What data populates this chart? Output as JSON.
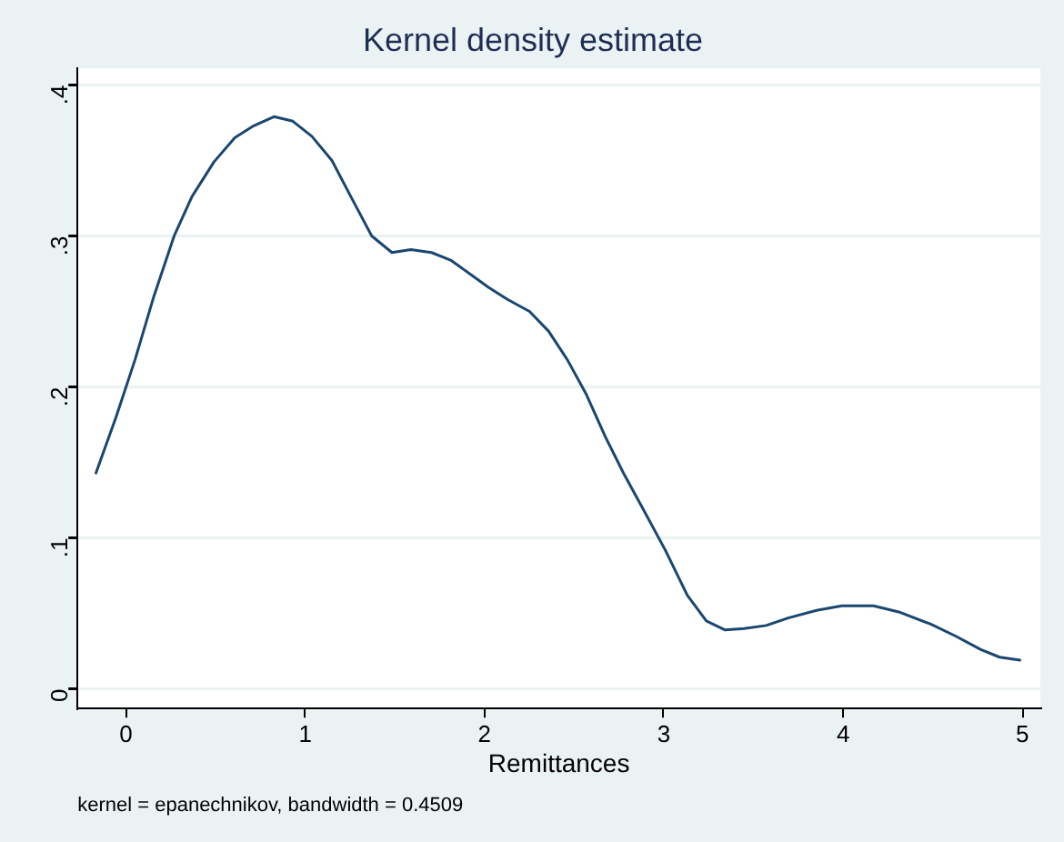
{
  "chart_data": {
    "type": "line",
    "title": "Kernel density estimate",
    "xlabel": "Remittances",
    "annotations": [
      "kernel = epanechnikov, bandwidth = 0.4509"
    ],
    "x": [
      -0.167,
      -0.055,
      0.051,
      0.156,
      0.269,
      0.368,
      0.491,
      0.607,
      0.713,
      0.826,
      0.931,
      1.037,
      1.149,
      1.255,
      1.371,
      1.484,
      1.589,
      1.705,
      1.811,
      1.917,
      2.022,
      2.128,
      2.251,
      2.357,
      2.462,
      2.568,
      2.674,
      2.779,
      2.885,
      3.008,
      3.131,
      3.237,
      3.342,
      3.448,
      3.571,
      3.694,
      3.852,
      3.993,
      4.169,
      4.31,
      4.486,
      4.627,
      4.768,
      4.873,
      4.986
    ],
    "series": [
      {
        "color": "#1a476f",
        "values": [
          0.143,
          0.18,
          0.218,
          0.26,
          0.3,
          0.326,
          0.349,
          0.365,
          0.373,
          0.379,
          0.376,
          0.366,
          0.35,
          0.326,
          0.3,
          0.289,
          0.291,
          0.289,
          0.284,
          0.275,
          0.266,
          0.258,
          0.25,
          0.237,
          0.218,
          0.195,
          0.167,
          0.142,
          0.119,
          0.092,
          0.062,
          0.045,
          0.039,
          0.04,
          0.042,
          0.047,
          0.052,
          0.055,
          0.055,
          0.051,
          0.043,
          0.035,
          0.026,
          0.021,
          0.019
        ]
      }
    ],
    "xlim": [
      -0.27,
      5.1
    ],
    "xticks": [
      0,
      1,
      2,
      3,
      4,
      5
    ],
    "ylim": [
      -0.013,
      0.411
    ],
    "yticks": [
      0,
      {
        "value": 0.1,
        "label": ".1"
      },
      {
        "value": 0.2,
        "label": ".2"
      },
      {
        "value": 0.3,
        "label": ".3"
      },
      {
        "value": 0.4,
        "label": ".4"
      }
    ],
    "grid": "y",
    "legend": false,
    "marker": "none",
    "line_style": "solid"
  }
}
